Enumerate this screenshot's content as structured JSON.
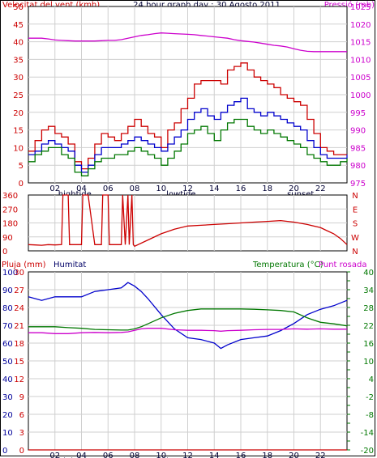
{
  "header": {
    "left_title": "Velocitat del vent (kmh)",
    "center_title": "24 hour graph day : 30 Agosto 2011",
    "right_title": "Pressió (mb)"
  },
  "labels": {
    "pluja": "Pluja (mm)",
    "humitat": "Humitat",
    "temperatura": "Temperatura (°C)",
    "punt_rosada": "Punt rosada"
  },
  "colors": {
    "red": "#cc0000",
    "blue": "#0000cc",
    "green": "#007700",
    "magenta": "#cc00cc",
    "grid": "#cfcfcf"
  },
  "chart_data": [
    {
      "type": "line",
      "title": "24 hour graph day : 30 Agosto 2011",
      "ylabel": "Velocitat del vent (kmh)",
      "y2label": "Pressió (mb)",
      "ylim": [
        0,
        50
      ],
      "y2lim": [
        975,
        1025
      ],
      "yticks": [
        "0",
        "5",
        "10",
        "15",
        "20",
        "25",
        "30",
        "35",
        "40",
        "45",
        "50"
      ],
      "y2ticks": [
        "975",
        "980",
        "985",
        "990",
        "995",
        "1000",
        "1005",
        "1010",
        "1015",
        "1020",
        "1025"
      ],
      "xticks": [
        "02",
        "04",
        "06",
        "08",
        "10",
        "12",
        "14",
        "16",
        "18",
        "20",
        "22"
      ],
      "markers": [
        "hightide",
        "lowtide",
        "sunset"
      ],
      "x": [
        0,
        0.5,
        1,
        1.5,
        2,
        2.5,
        3,
        3.5,
        4,
        4.5,
        5,
        5.5,
        6,
        6.5,
        7,
        7.5,
        8,
        8.5,
        9,
        9.5,
        10,
        10.5,
        11,
        11.5,
        12,
        12.5,
        13,
        13.5,
        14,
        14.5,
        15,
        15.5,
        16,
        16.5,
        17,
        17.5,
        18,
        18.5,
        19,
        19.5,
        20,
        20.5,
        21,
        21.5,
        22,
        22.5,
        23,
        23.5,
        24
      ],
      "series": [
        {
          "name": "gust",
          "axis": "left",
          "color": "red",
          "values": [
            9,
            12,
            15,
            16,
            14,
            13,
            11,
            6,
            4,
            7,
            11,
            14,
            13,
            12,
            14,
            16,
            18,
            16,
            14,
            13,
            10,
            15,
            17,
            21,
            24,
            28,
            29,
            29,
            29,
            28,
            32,
            33,
            34,
            32,
            30,
            29,
            28,
            27,
            25,
            24,
            23,
            22,
            18,
            14,
            10,
            9,
            8,
            8,
            8
          ]
        },
        {
          "name": "average",
          "axis": "left",
          "color": "blue",
          "values": [
            8,
            9,
            11,
            12,
            11,
            10,
            9,
            5,
            3,
            5,
            8,
            10,
            10,
            10,
            11,
            12,
            13,
            12,
            11,
            10,
            9,
            11,
            13,
            15,
            18,
            20,
            21,
            19,
            18,
            20,
            22,
            23,
            24,
            21,
            20,
            19,
            20,
            19,
            18,
            17,
            16,
            15,
            12,
            10,
            8,
            7,
            7,
            7,
            8
          ]
        },
        {
          "name": "min",
          "axis": "left",
          "color": "green",
          "values": [
            6,
            8,
            9,
            10,
            10,
            8,
            7,
            3,
            2,
            4,
            6,
            7,
            7,
            8,
            8,
            9,
            10,
            9,
            8,
            7,
            5,
            7,
            9,
            11,
            14,
            15,
            16,
            14,
            12,
            15,
            17,
            18,
            18,
            16,
            15,
            14,
            15,
            14,
            13,
            12,
            11,
            10,
            8,
            7,
            6,
            5,
            5,
            6,
            7
          ]
        },
        {
          "name": "Pressió (mb)",
          "axis": "right",
          "color": "magenta",
          "values": [
            1016,
            1016,
            1016,
            1015.8,
            1015.5,
            1015.4,
            1015.3,
            1015.2,
            1015.2,
            1015.2,
            1015.2,
            1015.3,
            1015.4,
            1015.4,
            1015.6,
            1016,
            1016.4,
            1016.8,
            1017,
            1017.3,
            1017.5,
            1017.4,
            1017.3,
            1017.2,
            1017.1,
            1017,
            1016.8,
            1016.6,
            1016.4,
            1016.2,
            1016,
            1015.6,
            1015.3,
            1015.1,
            1014.9,
            1014.6,
            1014.3,
            1014,
            1013.8,
            1013.5,
            1013,
            1012.6,
            1012.3,
            1012.2,
            1012.2,
            1012.2,
            1012.2,
            1012.2,
            1012.2
          ]
        }
      ]
    },
    {
      "type": "line",
      "ylabel": "Direcció del vent",
      "yticks": [
        "0",
        "90",
        "180",
        "270",
        "360"
      ],
      "y2ticks": [
        "N",
        "W",
        "S",
        "E",
        "N"
      ],
      "ylim": [
        0,
        360
      ],
      "x": [
        0,
        0.5,
        1,
        1.5,
        2,
        2.5,
        2.6,
        3,
        3.1,
        4,
        4.1,
        4.5,
        5,
        5.5,
        5.6,
        6,
        6.1,
        7,
        7.1,
        7.3,
        7.5,
        7.6,
        7.8,
        7.9,
        8,
        9,
        10,
        11,
        12,
        13,
        14,
        15,
        16,
        17,
        18,
        19,
        20,
        21,
        22,
        22.5,
        23,
        23.5,
        24
      ],
      "series": [
        {
          "name": "direction",
          "color": "red",
          "values": [
            40,
            38,
            36,
            40,
            38,
            40,
            360,
            360,
            40,
            40,
            360,
            360,
            40,
            40,
            360,
            360,
            40,
            40,
            360,
            40,
            360,
            40,
            360,
            40,
            30,
            70,
            110,
            140,
            160,
            165,
            170,
            175,
            180,
            185,
            190,
            195,
            185,
            170,
            150,
            130,
            110,
            80,
            40
          ]
        }
      ]
    },
    {
      "type": "line",
      "ylabel": "Pluja (mm)",
      "y2label": "Temperatura (°C)",
      "yticks_rain": [
        "0",
        "3",
        "6",
        "9",
        "12",
        "15",
        "18",
        "21",
        "24",
        "27",
        "30"
      ],
      "yticks_hum": [
        "0",
        "10",
        "20",
        "30",
        "40",
        "50",
        "60",
        "70",
        "80",
        "90",
        "100"
      ],
      "y2ticks": [
        "-20",
        "-17",
        "-14",
        "-11",
        "-8",
        "-5",
        "-2",
        "1",
        "4",
        "7",
        "10",
        "13",
        "16",
        "19",
        "22",
        "25",
        "28",
        "31",
        "34",
        "37",
        "40"
      ],
      "y2labels_shown": [
        "-20",
        "-14",
        "-8",
        "-2",
        "4",
        "10",
        "16",
        "22",
        "28",
        "34",
        "40"
      ],
      "ylim": [
        0,
        100
      ],
      "y2lim": [
        -20,
        40
      ],
      "x": [
        0,
        1,
        2,
        3,
        4,
        5,
        6,
        7,
        7.5,
        8,
        8.5,
        9,
        10,
        11,
        12,
        13,
        14,
        14.5,
        15,
        16,
        17,
        18,
        19,
        20,
        21,
        22,
        23,
        24
      ],
      "series": [
        {
          "name": "Humitat",
          "axis": "left",
          "color": "blue",
          "values": [
            86,
            84,
            86,
            86,
            86,
            89,
            90,
            91,
            94,
            92,
            89,
            85,
            76,
            68,
            63,
            62,
            60,
            57,
            59,
            62,
            63,
            64,
            67,
            71,
            76,
            79,
            81,
            84
          ]
        },
        {
          "name": "Temperatura (°C)",
          "axis": "right",
          "color": "green",
          "values": [
            21.5,
            21.5,
            21.5,
            21.2,
            21,
            20.6,
            20.5,
            20.4,
            20.4,
            20.8,
            21.5,
            22.5,
            24.5,
            26,
            27,
            27.5,
            27.5,
            27.5,
            27.5,
            27.5,
            27.4,
            27.2,
            27,
            26.5,
            24.5,
            23,
            22.5,
            21.8
          ]
        },
        {
          "name": "Punt rosada",
          "axis": "right",
          "color": "magenta",
          "values": [
            19.5,
            19.5,
            19.2,
            19.2,
            19.5,
            19.6,
            19.5,
            19.6,
            19.8,
            20.3,
            20.8,
            21,
            21,
            20.5,
            20.3,
            20.3,
            20.2,
            20,
            20.2,
            20.3,
            20.5,
            20.6,
            20.6,
            20.8,
            20.7,
            20.8,
            20.7,
            20.7
          ]
        },
        {
          "name": "Pluja (mm)",
          "axis": "rain",
          "color": "red",
          "values": [
            0,
            0,
            0,
            0,
            0,
            0,
            0,
            0,
            0,
            0,
            0,
            0,
            0,
            0,
            0,
            0,
            0,
            0,
            0,
            0,
            0,
            0,
            0,
            0,
            0,
            0,
            0,
            0
          ]
        }
      ]
    }
  ]
}
